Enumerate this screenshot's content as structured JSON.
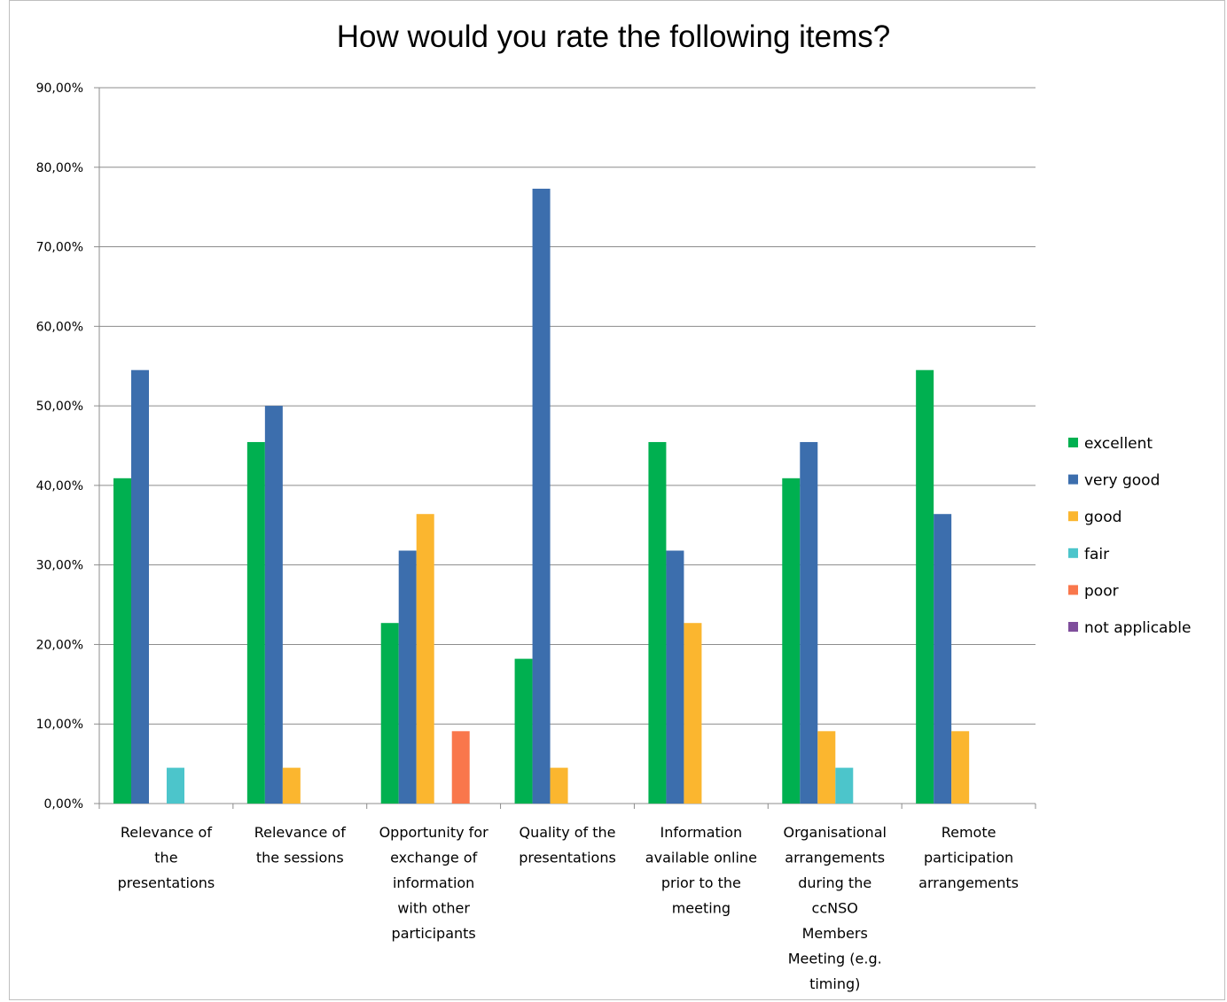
{
  "chart_data": {
    "type": "bar",
    "title": "How would you rate the following items?",
    "xlabel": "",
    "ylabel": "",
    "ylim": [
      0,
      90
    ],
    "y_ticks": [
      0,
      10,
      20,
      30,
      40,
      50,
      60,
      70,
      80,
      90
    ],
    "y_tick_labels": [
      "0,00%",
      "10,00%",
      "20,00%",
      "30,00%",
      "40,00%",
      "50,00%",
      "60,00%",
      "70,00%",
      "80,00%",
      "90,00%"
    ],
    "grid": true,
    "legend_position": "right",
    "categories": [
      [
        "Relevance of",
        "the",
        "presentations"
      ],
      [
        "Relevance of",
        "the sessions"
      ],
      [
        "Opportunity for",
        "exchange of",
        "information",
        "with other",
        "participants"
      ],
      [
        "Quality of the",
        "presentations"
      ],
      [
        "Information",
        "available online",
        "prior to the",
        "meeting"
      ],
      [
        "Organisational",
        "arrangements",
        "during the",
        "ccNSO",
        "Members",
        "Meeting (e.g.",
        "timing)"
      ],
      [
        "Remote",
        "participation",
        "arrangements"
      ]
    ],
    "series": [
      {
        "name": "excellent",
        "color": "#00b050",
        "values": [
          40.9,
          45.45,
          22.7,
          18.2,
          45.45,
          40.9,
          54.5
        ]
      },
      {
        "name": "very good",
        "color": "#3c6ead",
        "values": [
          54.5,
          50.0,
          31.8,
          77.3,
          31.8,
          45.45,
          36.4
        ]
      },
      {
        "name": "good",
        "color": "#fbb62f",
        "values": [
          0,
          4.5,
          36.4,
          4.5,
          22.7,
          9.1,
          9.1
        ]
      },
      {
        "name": "fair",
        "color": "#4cc5cb",
        "values": [
          4.5,
          0,
          0,
          0,
          0,
          4.5,
          0
        ]
      },
      {
        "name": "poor",
        "color": "#f9774c",
        "values": [
          0,
          0,
          9.1,
          0,
          0,
          0,
          0
        ]
      },
      {
        "name": "not applicable",
        "color": "#7f4e9c",
        "values": [
          0,
          0,
          0,
          0,
          0,
          0,
          0
        ]
      }
    ]
  }
}
